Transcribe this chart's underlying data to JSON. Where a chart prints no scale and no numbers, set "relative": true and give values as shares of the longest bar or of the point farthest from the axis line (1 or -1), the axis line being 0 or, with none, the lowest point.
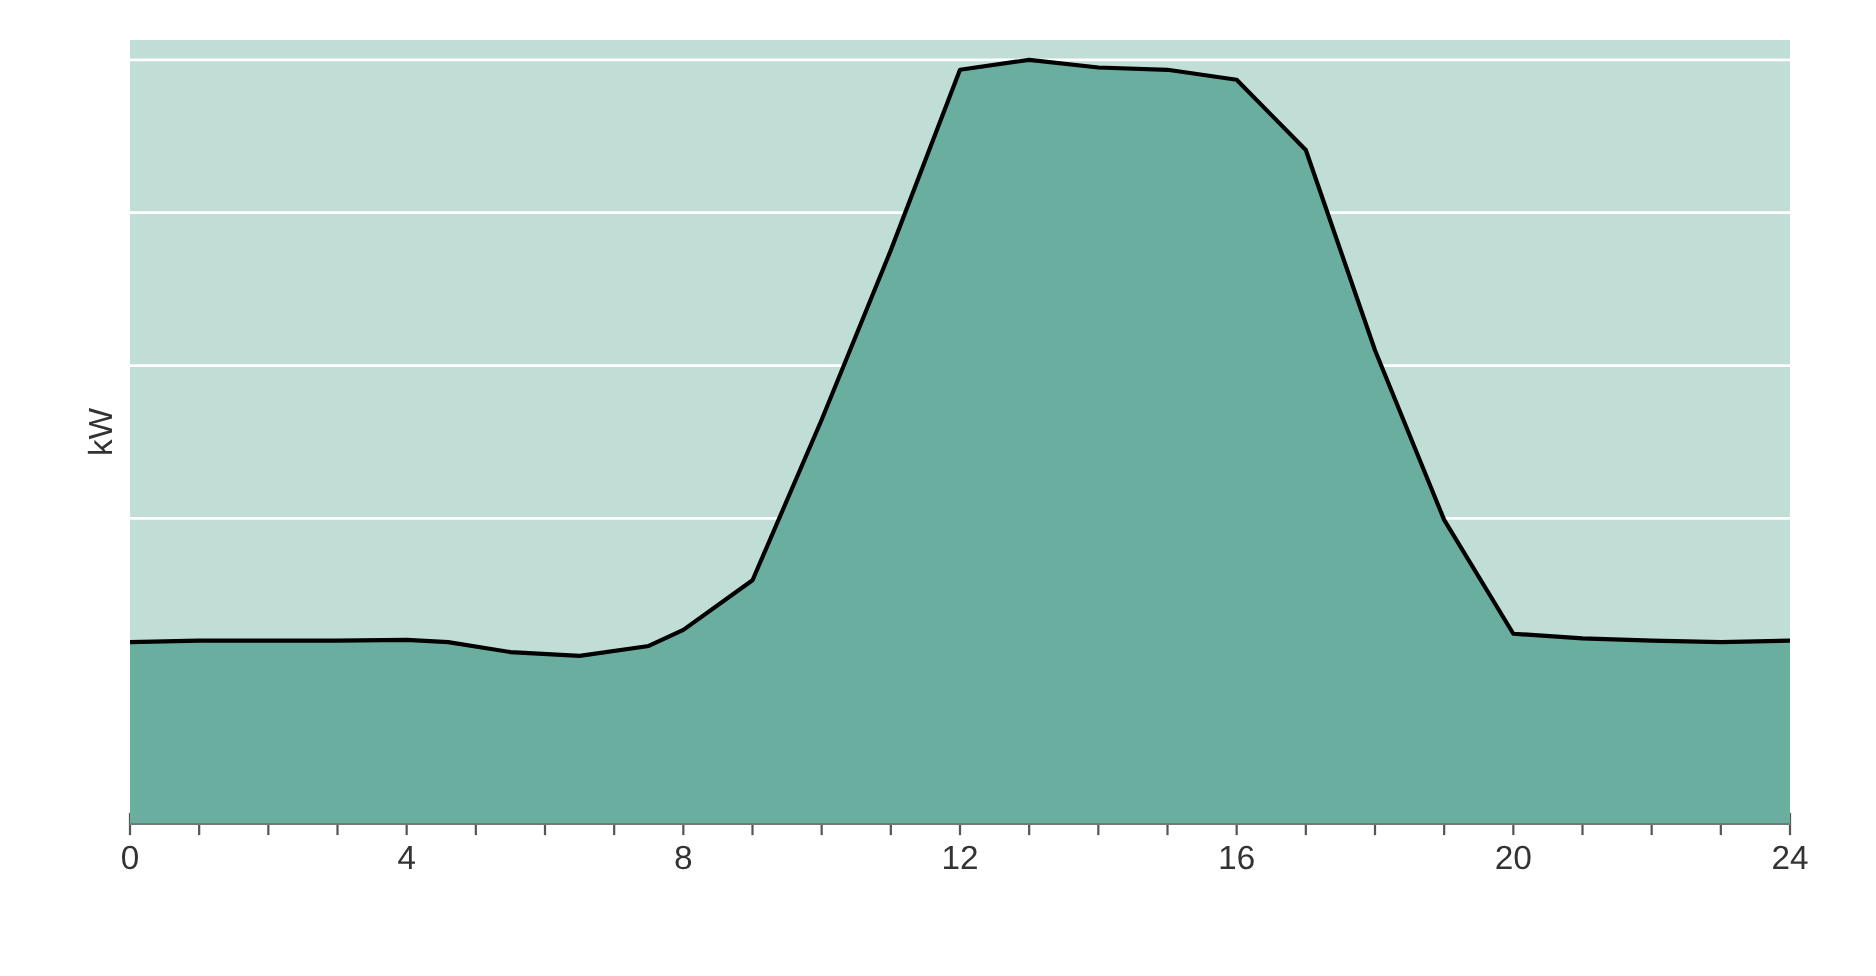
{
  "chart_data": {
    "type": "area",
    "ylabel": "kW",
    "relative": true,
    "tick_labels": "x",
    "grid": "y",
    "xlim": [
      0,
      24
    ],
    "xticks": [
      0,
      {
        "value": 1,
        "label": null
      },
      {
        "value": 2,
        "label": null
      },
      {
        "value": 3,
        "label": null
      },
      4,
      {
        "value": 5,
        "label": null
      },
      {
        "value": 6,
        "label": null
      },
      {
        "value": 7,
        "label": null
      },
      8,
      {
        "value": 9,
        "label": null
      },
      {
        "value": 10,
        "label": null
      },
      {
        "value": 11,
        "label": null
      },
      12,
      {
        "value": 13,
        "label": null
      },
      {
        "value": 14,
        "label": null
      },
      {
        "value": 15,
        "label": null
      },
      16,
      {
        "value": 17,
        "label": null
      },
      {
        "value": 18,
        "label": null
      },
      {
        "value": 19,
        "label": null
      },
      20,
      {
        "value": 21,
        "label": null
      },
      {
        "value": 22,
        "label": null
      },
      {
        "value": 23,
        "label": null
      },
      24
    ],
    "x": [
      0,
      1,
      2,
      3,
      4,
      4.6,
      5.5,
      6.5,
      7.5,
      8,
      9,
      10,
      11,
      12,
      13,
      14,
      15,
      16,
      17,
      18,
      19,
      20,
      21,
      22,
      23,
      24
    ],
    "series": [
      {
        "color": "#6aaea0",
        "values": [
          0.238,
          0.24,
          0.24,
          0.24,
          0.241,
          0.238,
          0.225,
          0.22,
          0.233,
          0.254,
          0.319,
          0.529,
          0.751,
          0.987,
          1.0,
          0.99,
          0.987,
          0.974,
          0.882,
          0.62,
          0.398,
          0.249,
          0.243,
          0.24,
          0.238,
          0.24
        ]
      }
    ]
  }
}
